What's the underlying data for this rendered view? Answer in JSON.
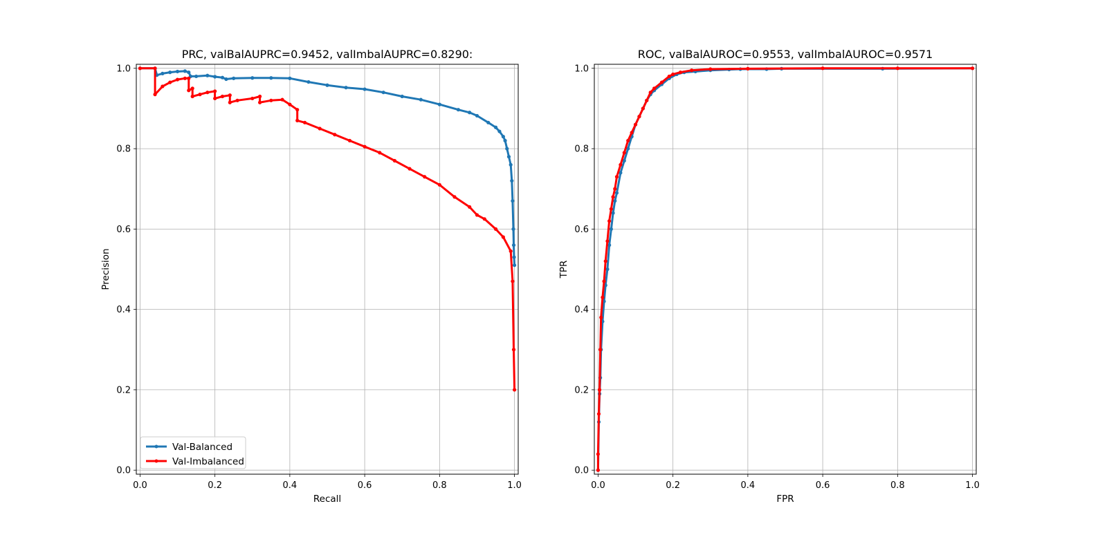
{
  "colors": {
    "balanced": "#1f77b4",
    "imbalanced": "#ff0000",
    "grid": "#b0b0b0"
  },
  "chart_data": [
    {
      "type": "line",
      "title": "PRC, valBalAUPRC=0.9452, valImbalAUPRC=0.8290:",
      "xlabel": "Recall",
      "ylabel": "Precision",
      "xlim": [
        -0.01,
        1.01
      ],
      "ylim": [
        -0.01,
        1.01
      ],
      "xticks": [
        "0.0",
        "0.2",
        "0.4",
        "0.6",
        "0.8",
        "1.0"
      ],
      "yticks": [
        "0.0",
        "0.2",
        "0.4",
        "0.6",
        "0.8",
        "1.0"
      ],
      "grid": true,
      "legend": {
        "placement": "lower-left",
        "entries": [
          "Val-Balanced",
          "Val-Imbalanced"
        ]
      },
      "series": [
        {
          "name": "Val-Balanced",
          "color": "#1f77b4",
          "x": [
            0.0,
            0.04,
            0.045,
            0.06,
            0.08,
            0.1,
            0.12,
            0.13,
            0.135,
            0.15,
            0.18,
            0.2,
            0.22,
            0.23,
            0.25,
            0.3,
            0.35,
            0.4,
            0.45,
            0.5,
            0.55,
            0.6,
            0.65,
            0.7,
            0.75,
            0.8,
            0.85,
            0.88,
            0.9,
            0.93,
            0.95,
            0.96,
            0.97,
            0.975,
            0.98,
            0.985,
            0.99,
            0.993,
            0.995,
            0.997,
            0.998,
            0.999,
            1.0
          ],
          "y": [
            1.0,
            1.0,
            0.983,
            0.987,
            0.99,
            0.992,
            0.993,
            0.99,
            0.98,
            0.98,
            0.982,
            0.979,
            0.977,
            0.973,
            0.975,
            0.976,
            0.976,
            0.975,
            0.966,
            0.958,
            0.952,
            0.948,
            0.94,
            0.93,
            0.922,
            0.91,
            0.897,
            0.89,
            0.882,
            0.865,
            0.853,
            0.843,
            0.83,
            0.82,
            0.8,
            0.78,
            0.76,
            0.72,
            0.67,
            0.6,
            0.56,
            0.53,
            0.51
          ]
        },
        {
          "name": "Val-Imbalanced",
          "color": "#ff0000",
          "x": [
            0.0,
            0.04,
            0.04,
            0.06,
            0.08,
            0.1,
            0.12,
            0.13,
            0.13,
            0.14,
            0.14,
            0.16,
            0.18,
            0.2,
            0.2,
            0.22,
            0.24,
            0.24,
            0.26,
            0.3,
            0.32,
            0.32,
            0.35,
            0.38,
            0.4,
            0.42,
            0.42,
            0.44,
            0.48,
            0.52,
            0.56,
            0.6,
            0.64,
            0.68,
            0.72,
            0.76,
            0.8,
            0.84,
            0.88,
            0.9,
            0.92,
            0.95,
            0.97,
            0.99,
            0.995,
            0.998,
            1.0
          ],
          "y": [
            1.0,
            1.0,
            0.935,
            0.955,
            0.965,
            0.972,
            0.975,
            0.975,
            0.945,
            0.95,
            0.93,
            0.935,
            0.94,
            0.943,
            0.925,
            0.93,
            0.933,
            0.915,
            0.92,
            0.925,
            0.93,
            0.915,
            0.92,
            0.922,
            0.91,
            0.897,
            0.87,
            0.865,
            0.85,
            0.835,
            0.82,
            0.805,
            0.79,
            0.77,
            0.75,
            0.73,
            0.71,
            0.68,
            0.655,
            0.635,
            0.625,
            0.6,
            0.58,
            0.545,
            0.47,
            0.3,
            0.2
          ]
        }
      ]
    },
    {
      "type": "line",
      "title": "ROC, valBalAUROC=0.9553, valImbalAUROC=0.9571",
      "xlabel": "FPR",
      "ylabel": "TPR",
      "xlim": [
        -0.01,
        1.01
      ],
      "ylim": [
        -0.01,
        1.01
      ],
      "xticks": [
        "0.0",
        "0.2",
        "0.4",
        "0.6",
        "0.8",
        "1.0"
      ],
      "yticks": [
        "0.0",
        "0.2",
        "0.4",
        "0.6",
        "0.8",
        "1.0"
      ],
      "grid": true,
      "series": [
        {
          "name": "Val-Balanced",
          "color": "#1f77b4",
          "x": [
            0.0,
            0.002,
            0.004,
            0.006,
            0.008,
            0.012,
            0.016,
            0.02,
            0.025,
            0.03,
            0.035,
            0.04,
            0.045,
            0.05,
            0.06,
            0.07,
            0.08,
            0.09,
            0.1,
            0.11,
            0.12,
            0.13,
            0.14,
            0.15,
            0.17,
            0.19,
            0.21,
            0.23,
            0.26,
            0.3,
            0.35,
            0.38,
            0.45,
            0.49,
            0.76,
            1.0
          ],
          "y": [
            0.0,
            0.12,
            0.19,
            0.23,
            0.3,
            0.37,
            0.42,
            0.46,
            0.5,
            0.56,
            0.6,
            0.64,
            0.67,
            0.69,
            0.74,
            0.77,
            0.8,
            0.83,
            0.86,
            0.88,
            0.9,
            0.92,
            0.935,
            0.945,
            0.96,
            0.975,
            0.985,
            0.99,
            0.992,
            0.995,
            0.997,
            0.998,
            0.998,
            0.999,
            0.999,
            1.0
          ]
        },
        {
          "name": "Val-Imbalanced",
          "color": "#ff0000",
          "x": [
            0.0,
            0.0,
            0.002,
            0.004,
            0.006,
            0.008,
            0.012,
            0.016,
            0.02,
            0.025,
            0.03,
            0.035,
            0.04,
            0.045,
            0.05,
            0.06,
            0.07,
            0.08,
            0.09,
            0.1,
            0.11,
            0.12,
            0.13,
            0.14,
            0.15,
            0.17,
            0.19,
            0.2,
            0.22,
            0.25,
            0.3,
            0.4,
            0.6,
            0.8,
            1.0
          ],
          "y": [
            0.0,
            0.04,
            0.14,
            0.2,
            0.3,
            0.38,
            0.43,
            0.47,
            0.52,
            0.57,
            0.62,
            0.65,
            0.68,
            0.7,
            0.73,
            0.76,
            0.79,
            0.82,
            0.84,
            0.86,
            0.88,
            0.9,
            0.92,
            0.94,
            0.95,
            0.965,
            0.98,
            0.985,
            0.99,
            0.995,
            0.998,
            0.999,
            1.0,
            1.0,
            1.0
          ]
        }
      ]
    }
  ]
}
